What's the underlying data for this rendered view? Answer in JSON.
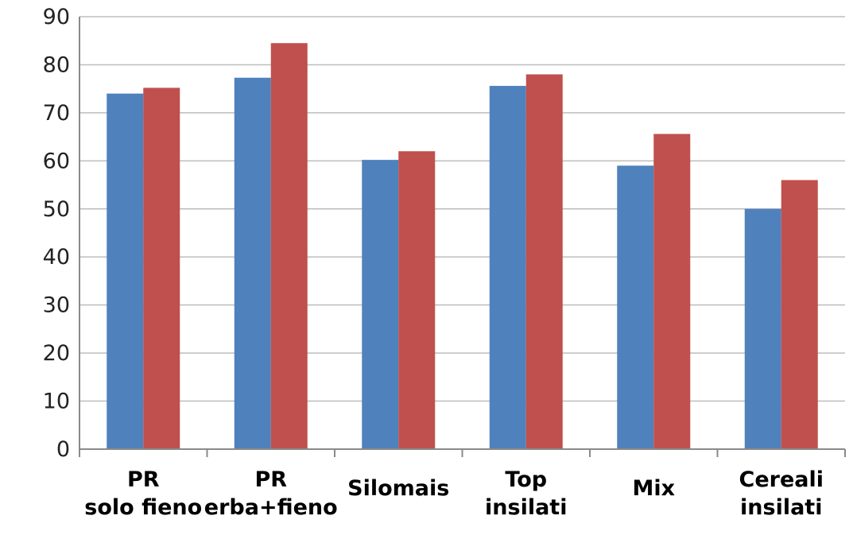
{
  "chart_data": {
    "type": "bar",
    "title": "",
    "xlabel": "",
    "ylabel": "",
    "ylim": [
      0,
      90
    ],
    "yticks": [
      0,
      10,
      20,
      30,
      40,
      50,
      60,
      70,
      80,
      90
    ],
    "grid": true,
    "legend": "none",
    "categories": [
      [
        "PR",
        "solo fieno"
      ],
      [
        "PR",
        "erba+fieno"
      ],
      [
        "Silomais"
      ],
      [
        "Top",
        "insilati"
      ],
      [
        "Mix"
      ],
      [
        "Cereali",
        "insilati"
      ]
    ],
    "series": [
      {
        "color": "#4f81bd",
        "values": [
          74,
          77.3,
          60.2,
          75.6,
          59,
          50
        ]
      },
      {
        "color": "#c0504d",
        "values": [
          75.2,
          84.5,
          62,
          78,
          65.6,
          56
        ]
      }
    ]
  }
}
